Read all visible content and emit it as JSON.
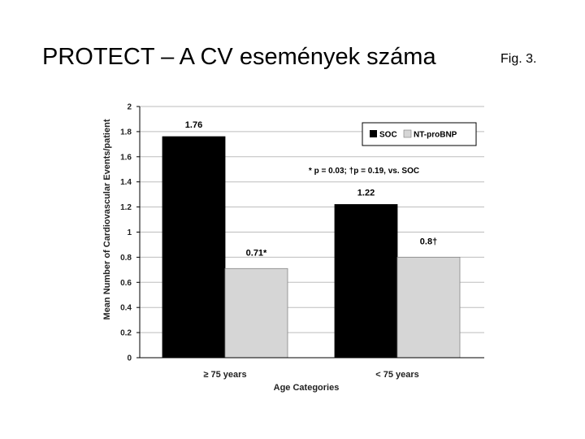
{
  "slide": {
    "title": "PROTECT – A CV események száma",
    "fig_label": "Fig. 3."
  },
  "chart_data": {
    "type": "bar",
    "title": "",
    "xlabel": "Age Categories",
    "ylabel": "Mean Number of Cardiovascular Events/patient",
    "ylim": [
      0,
      2
    ],
    "yticks": [
      0,
      0.2,
      0.4,
      0.6,
      0.8,
      1,
      1.2,
      1.4,
      1.6,
      1.8,
      2
    ],
    "ytick_labels": [
      "0",
      "0.2",
      "0.4",
      "0.6",
      "0.8",
      "1",
      "1.2",
      "1.4",
      "1.6",
      "1.8",
      "2"
    ],
    "grid": true,
    "legend_position": "top-right",
    "categories": [
      "≥ 75 years",
      "< 75 years"
    ],
    "series": [
      {
        "name": "SOC",
        "color": "#000000",
        "values": [
          1.76,
          1.22
        ],
        "labels": [
          "1.76",
          "1.22"
        ]
      },
      {
        "name": "NT-proBNP",
        "color": "#d6d6d6",
        "values": [
          0.71,
          0.8
        ],
        "labels": [
          "0.71*",
          "0.8†"
        ]
      }
    ],
    "annotation": "* p = 0.03; †p = 0.19, vs. SOC"
  }
}
